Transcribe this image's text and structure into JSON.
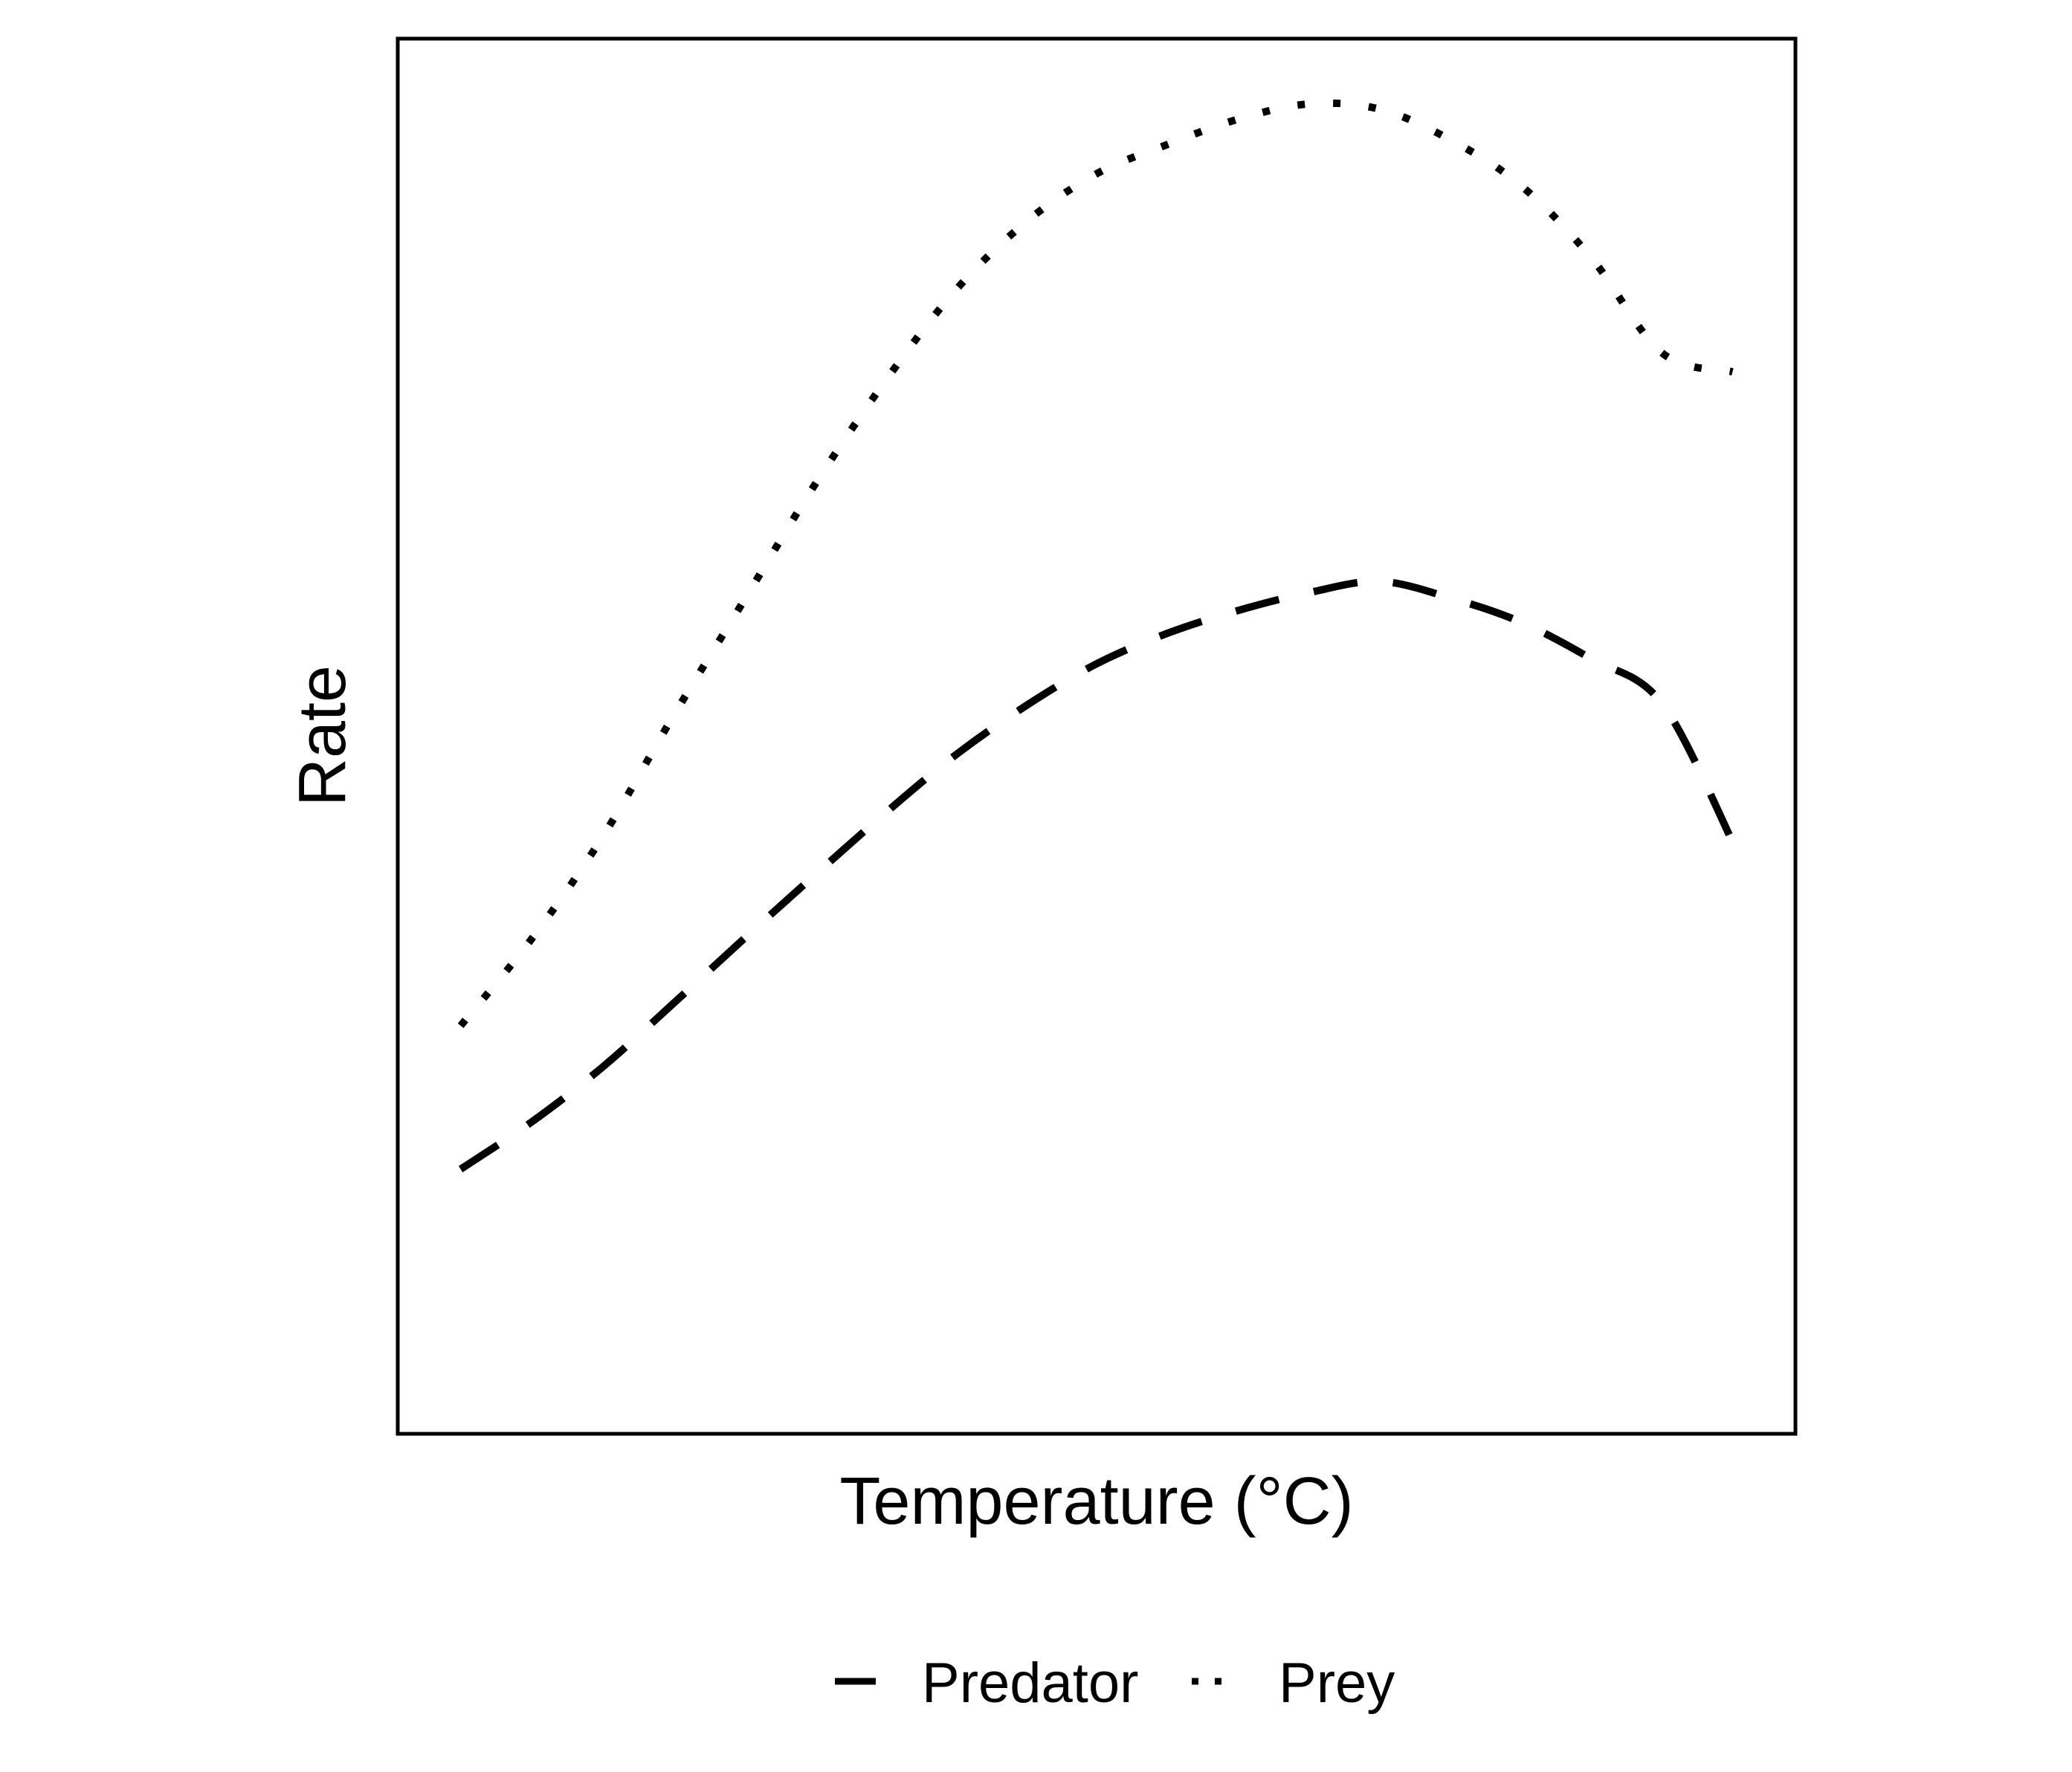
{
  "chart_data": {
    "type": "line",
    "xlabel": "Temperature (°C)",
    "ylabel": "Rate",
    "xlim": [
      0,
      10
    ],
    "ylim": [
      0,
      10
    ],
    "x_ticks_shown": false,
    "y_ticks_shown": false,
    "grid": false,
    "legend_position": "bottom",
    "series": [
      {
        "name": "Predator",
        "line_style": "dashed",
        "color": "#000000",
        "x": [
          0.0,
          0.5,
          1.0,
          1.5,
          2.0,
          2.5,
          3.0,
          3.5,
          4.0,
          4.5,
          5.0,
          5.5,
          6.0,
          6.5,
          7.0,
          7.5,
          8.0,
          8.5,
          9.0
        ],
        "values": [
          1.59,
          1.96,
          2.39,
          2.89,
          3.4,
          3.9,
          4.39,
          4.85,
          5.24,
          5.57,
          5.81,
          5.99,
          6.13,
          6.22,
          6.09,
          5.9,
          5.61,
          5.26,
          4.17
        ]
      },
      {
        "name": "Prey",
        "line_style": "dotted",
        "color": "#000000",
        "x": [
          0.0,
          0.5,
          1.0,
          1.5,
          2.0,
          2.5,
          3.0,
          3.5,
          4.0,
          4.5,
          5.0,
          5.5,
          6.0,
          6.5,
          7.0,
          7.5,
          8.0,
          8.5,
          9.0
        ],
        "values": [
          2.72,
          3.4,
          4.2,
          5.15,
          6.06,
          6.97,
          7.79,
          8.51,
          9.05,
          9.43,
          9.66,
          9.86,
          9.98,
          9.94,
          9.7,
          9.34,
          8.77,
          8.02,
          7.87
        ]
      }
    ]
  }
}
